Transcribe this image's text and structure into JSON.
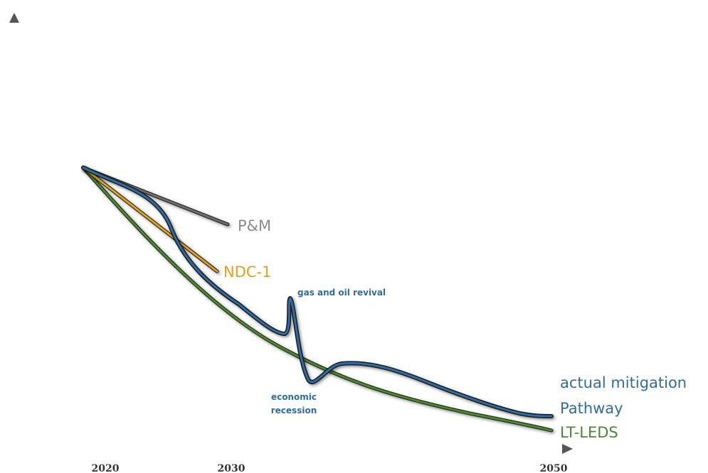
{
  "chart_data": {
    "type": "line",
    "x_ticks": [
      "2020",
      "2030",
      "2050"
    ],
    "series": [
      {
        "name": "P&M",
        "color": "#8c8c8c"
      },
      {
        "name": "NDC-1",
        "color": "#e0a21b"
      },
      {
        "name": "actual mitigation Pathway",
        "label_lines": [
          "actual mitigation",
          "Pathway"
        ],
        "color": "#2e6da4"
      },
      {
        "name": "LT-LEDS",
        "color": "#4a8a2a"
      }
    ],
    "annotations": [
      {
        "lines": [
          "gas and oil revival"
        ],
        "color": "#2e6da4"
      },
      {
        "lines": [
          "economic",
          "recession"
        ],
        "color": "#2e6da4"
      }
    ],
    "axis_color": "#555555"
  }
}
